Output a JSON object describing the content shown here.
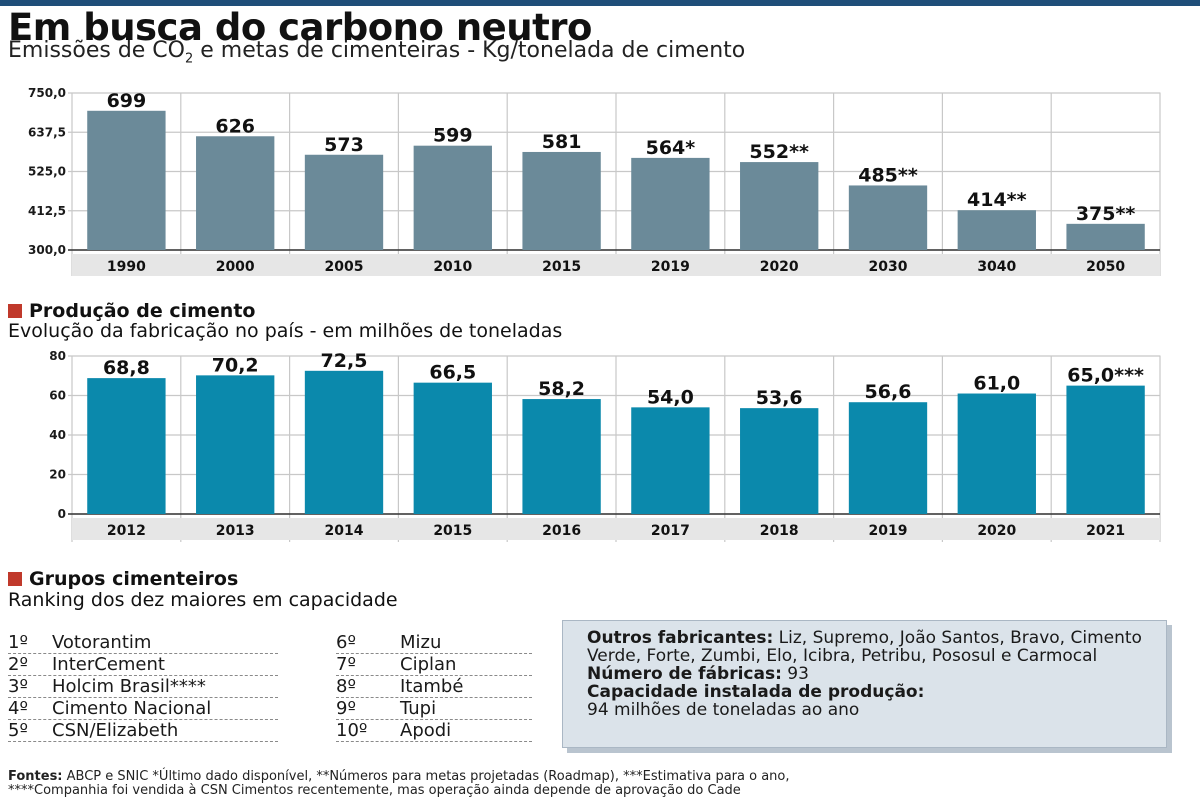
{
  "header": {
    "title": "Em busca do carbono neutro",
    "subtitle_pre": "Emissões de CO",
    "subtitle_sub": "2",
    "subtitle_post": " e metas de cimenteiras - Kg/tonelada de cimento"
  },
  "colors": {
    "chart1_bar": "#6b8a99",
    "chart2_bar": "#0b89ac",
    "accent": "#c0392b",
    "topbar": "#1f4e79"
  },
  "chart_data": [
    {
      "type": "bar",
      "title": "Emissões de CO2 e metas de cimenteiras - Kg/tonelada de cimento",
      "categories": [
        "1990",
        "2000",
        "2005",
        "2010",
        "2015",
        "2019",
        "2020",
        "2030",
        "3040",
        "2050"
      ],
      "values": [
        699,
        626,
        573,
        599,
        581,
        564,
        552,
        485,
        414,
        375
      ],
      "labels": [
        "699",
        "626",
        "573",
        "599",
        "581",
        "564*",
        "552**",
        "485**",
        "414**",
        "375**"
      ],
      "ylim": [
        300,
        750
      ],
      "yticks": [
        300,
        412.5,
        525,
        637.5,
        750
      ],
      "ytick_labels": [
        "300,0",
        "412,5",
        "525,0",
        "637,5",
        "750,0"
      ],
      "grid": true
    },
    {
      "type": "bar",
      "title": "Evolução da fabricação no país - em milhões de toneladas",
      "categories": [
        "2012",
        "2013",
        "2014",
        "2015",
        "2016",
        "2017",
        "2018",
        "2019",
        "2020",
        "2021"
      ],
      "values": [
        68.8,
        70.2,
        72.5,
        66.5,
        58.2,
        54.0,
        53.6,
        56.6,
        61.0,
        65.0
      ],
      "labels": [
        "68,8",
        "70,2",
        "72,5",
        "66,5",
        "58,2",
        "54,0",
        "53,6",
        "56,6",
        "61,0",
        "65,0***"
      ],
      "ylim": [
        0,
        80
      ],
      "yticks": [
        0,
        20,
        40,
        60,
        80
      ],
      "ytick_labels": [
        "0",
        "20",
        "40",
        "60",
        "80"
      ],
      "grid": true
    }
  ],
  "production": {
    "heading": "Produção de cimento",
    "subheading": "Evolução da fabricação no país - em milhões de toneladas"
  },
  "groups": {
    "heading": "Grupos cimenteiros",
    "subheading": "Ranking dos dez maiores em capacidade",
    "ranking": [
      {
        "pos": "1º",
        "name": "Votorantim"
      },
      {
        "pos": "2º",
        "name": "InterCement"
      },
      {
        "pos": "3º",
        "name": "Holcim Brasil****"
      },
      {
        "pos": "4º",
        "name": "Cimento Nacional"
      },
      {
        "pos": "5º",
        "name": "CSN/Elizabeth"
      },
      {
        "pos": "6º",
        "name": "Mizu"
      },
      {
        "pos": "7º",
        "name": "Ciplan"
      },
      {
        "pos": "8º",
        "name": "Itambé"
      },
      {
        "pos": "9º",
        "name": "Tupi"
      },
      {
        "pos": "10º",
        "name": "Apodi"
      }
    ]
  },
  "info": {
    "others_label": "Outros fabricantes:",
    "others_value": " Liz, Supremo, João Santos, Bravo, Cimento Verde, Forte, Zumbi, Elo, Icibra, Petribu, Pososul e Carmocal",
    "factories_label": "Número de fábricas:",
    "factories_value": " 93",
    "capacity_label": "Capacidade instalada de produção:",
    "capacity_value": "94 milhões de toneladas ao ano"
  },
  "footer": {
    "line1_label": "Fontes:",
    "line1": " ABCP e SNIC   *Último dado disponível, **Números para metas projetadas (Roadmap), ***Estimativa para o ano,",
    "line2": "****Companhia foi vendida à CSN Cimentos recentemente, mas operação ainda depende de aprovação do Cade"
  }
}
